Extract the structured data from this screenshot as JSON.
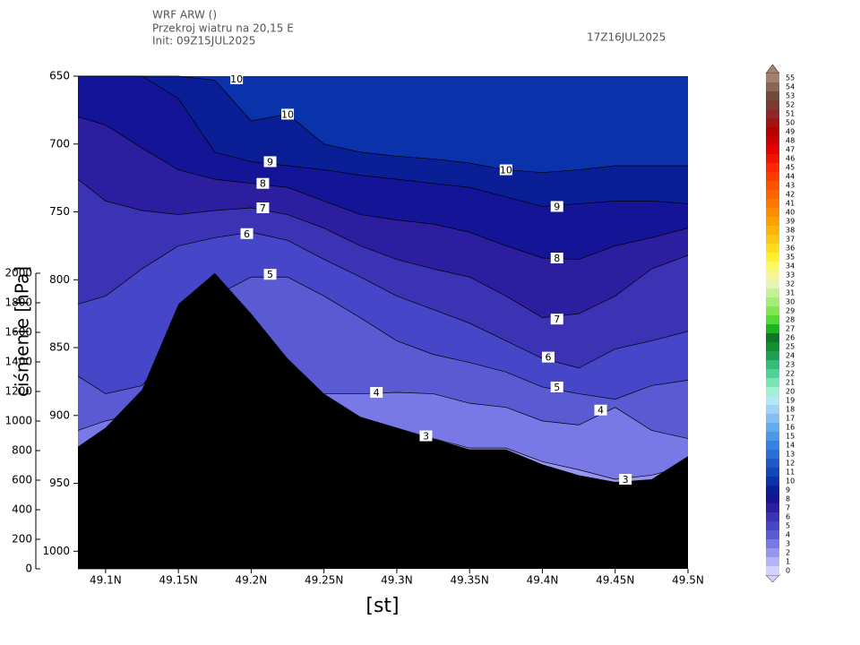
{
  "chart_data": {
    "type": "contour",
    "title": "WRF ARW ()",
    "subtitle": "Przekroj wiatru na 20,15 E",
    "init": "Init: 09Z15JUL2025",
    "valid": "17Z16JUL2025",
    "xlabel": "[st]",
    "ylabel": "ciśnienie [hPa]",
    "x": [
      49.081,
      49.1,
      49.125,
      49.15,
      49.175,
      49.2,
      49.225,
      49.25,
      49.275,
      49.3,
      49.325,
      49.35,
      49.375,
      49.4,
      49.425,
      49.45,
      49.475,
      49.5
    ],
    "xlim": [
      49.081,
      49.5
    ],
    "xticks": [
      {
        "value": 49.1,
        "label": "49.1N"
      },
      {
        "value": 49.15,
        "label": "49.15N"
      },
      {
        "value": 49.2,
        "label": "49.2N"
      },
      {
        "value": 49.25,
        "label": "49.25N"
      },
      {
        "value": 49.3,
        "label": "49.3N"
      },
      {
        "value": 49.35,
        "label": "49.35N"
      },
      {
        "value": 49.4,
        "label": "49.4N"
      },
      {
        "value": 49.45,
        "label": "49.45N"
      },
      {
        "value": 49.5,
        "label": "49.5N"
      }
    ],
    "ylim": [
      650,
      1013
    ],
    "yticks": [
      650,
      700,
      750,
      800,
      850,
      900,
      950,
      1000
    ],
    "y2lim": [
      0,
      2000
    ],
    "y2ticks": [
      0,
      200,
      400,
      600,
      800,
      1000,
      1200,
      1400,
      1600,
      1800,
      2000
    ],
    "background_level": 2,
    "contours": [
      {
        "level": 3,
        "values": [
          1013,
          1013,
          1013,
          1013,
          1013,
          1013,
          1013,
          1013,
          904,
          911,
          917,
          924,
          924,
          934,
          940,
          947,
          944,
          937
        ]
      },
      {
        "level": 4,
        "values": [
          911,
          904,
          898,
          891,
          884,
          884,
          884,
          884,
          884,
          883,
          884,
          891,
          894,
          904,
          907,
          894,
          911,
          917
        ]
      },
      {
        "level": 5,
        "values": [
          871,
          884,
          878,
          845,
          812,
          798,
          798,
          812,
          828,
          845,
          855,
          861,
          868,
          879,
          884,
          888,
          878,
          874
        ]
      },
      {
        "level": 6,
        "values": [
          818,
          812,
          792,
          775,
          769,
          765,
          771,
          785,
          798,
          812,
          822,
          832,
          845,
          858,
          865,
          851,
          845,
          838
        ]
      },
      {
        "level": 7,
        "values": [
          726,
          742,
          749,
          752,
          749,
          747,
          752,
          762,
          775,
          785,
          792,
          798,
          812,
          828,
          825,
          812,
          792,
          782
        ]
      },
      {
        "level": 8,
        "values": [
          680,
          686,
          703,
          719,
          726,
          729,
          732,
          742,
          752,
          756,
          759,
          765,
          775,
          784,
          785,
          775,
          769,
          762
        ]
      },
      {
        "level": 9,
        "values": [
          650,
          650,
          650,
          666.5,
          706,
          713,
          716,
          719,
          723,
          726,
          729,
          732,
          739,
          746,
          744,
          742,
          742,
          744
        ]
      },
      {
        "level": 10,
        "values": [
          650,
          650,
          650,
          650,
          653,
          683,
          678,
          700,
          706,
          709,
          711,
          714,
          719,
          721,
          719,
          716,
          716,
          716
        ]
      }
    ],
    "terrain": [
      923,
      909,
      881,
      818,
      795,
      825,
      858,
      884,
      901,
      909,
      917,
      925,
      925,
      936,
      944,
      949,
      947,
      930
    ],
    "contour_labels": [
      {
        "x": 49.19,
        "y": 652,
        "level": 10
      },
      {
        "x": 49.225,
        "y": 678,
        "level": 10
      },
      {
        "x": 49.375,
        "y": 719,
        "level": 10
      },
      {
        "x": 49.213,
        "y": 713,
        "level": 9
      },
      {
        "x": 49.41,
        "y": 746,
        "level": 9
      },
      {
        "x": 49.208,
        "y": 729,
        "level": 8
      },
      {
        "x": 49.41,
        "y": 784,
        "level": 8
      },
      {
        "x": 49.208,
        "y": 747,
        "level": 7
      },
      {
        "x": 49.41,
        "y": 829,
        "level": 7
      },
      {
        "x": 49.197,
        "y": 766,
        "level": 6
      },
      {
        "x": 49.404,
        "y": 857,
        "level": 6
      },
      {
        "x": 49.213,
        "y": 796,
        "level": 5
      },
      {
        "x": 49.41,
        "y": 879,
        "level": 5
      },
      {
        "x": 49.286,
        "y": 883,
        "level": 4
      },
      {
        "x": 49.44,
        "y": 896,
        "level": 4
      },
      {
        "x": 49.32,
        "y": 915,
        "level": 3
      },
      {
        "x": 49.457,
        "y": 947,
        "level": 3
      }
    ],
    "colorbar": {
      "levels": [
        0,
        1,
        2,
        3,
        4,
        5,
        6,
        7,
        8,
        9,
        10,
        11,
        12,
        13,
        14,
        15,
        16,
        17,
        18,
        19,
        20,
        21,
        22,
        23,
        24,
        25,
        26,
        27,
        28,
        29,
        30,
        31,
        32,
        33,
        34,
        35,
        36,
        37,
        38,
        39,
        40,
        41,
        42,
        43,
        44,
        45,
        46,
        47,
        48,
        49,
        50,
        51,
        52,
        53,
        54,
        55
      ],
      "colors": [
        "#d2d2ff",
        "#b4b4fa",
        "#9696f0",
        "#7878e6",
        "#5a5ad2",
        "#4646c8",
        "#3c32b4",
        "#2d1ea0",
        "#141496",
        "#0a1e96",
        "#0a32aa",
        "#1446b9",
        "#1e5ac8",
        "#2a6ed6",
        "#3282e6",
        "#5096e6",
        "#64aaf0",
        "#82bef0",
        "#a0d2f5",
        "#b4e6f5",
        "#a0f0d2",
        "#78e6b4",
        "#50d296",
        "#32be78",
        "#1ea050",
        "#148c32",
        "#0a7828",
        "#1eb41e",
        "#50dc32",
        "#82e650",
        "#a0f078",
        "#c8f096",
        "#e6f5b4",
        "#f5f596",
        "#fafa64",
        "#fff032",
        "#ffdc1e",
        "#ffc814",
        "#ffb40a",
        "#ffa000",
        "#ff8c00",
        "#ff7800",
        "#ff6400",
        "#ff5000",
        "#ff3c00",
        "#ff2800",
        "#f01400",
        "#e60000",
        "#c80000",
        "#b40000",
        "#a01414",
        "#8c2828",
        "#783c32",
        "#6e4b3c",
        "#8c6450",
        "#a0826e"
      ]
    }
  }
}
